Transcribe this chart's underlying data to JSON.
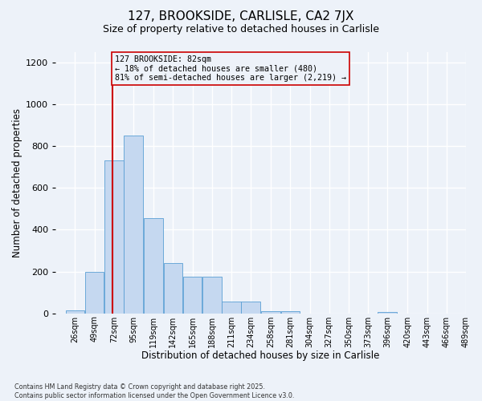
{
  "title_line1": "127, BROOKSIDE, CARLISLE, CA2 7JX",
  "title_line2": "Size of property relative to detached houses in Carlisle",
  "xlabel": "Distribution of detached houses by size in Carlisle",
  "ylabel": "Number of detached properties",
  "annotation_line1": "127 BROOKSIDE: 82sqm",
  "annotation_line2": "← 18% of detached houses are smaller (480)",
  "annotation_line3": "81% of semi-detached houses are larger (2,219) →",
  "property_size_sqm": 82,
  "bin_edges": [
    26,
    49,
    72,
    95,
    119,
    142,
    165,
    188,
    211,
    234,
    258,
    281,
    304,
    327,
    350,
    373,
    396,
    420,
    443,
    466,
    489
  ],
  "bin_labels": [
    "26sqm",
    "49sqm",
    "72sqm",
    "95sqm",
    "119sqm",
    "142sqm",
    "165sqm",
    "188sqm",
    "211sqm",
    "234sqm",
    "258sqm",
    "281sqm",
    "304sqm",
    "327sqm",
    "350sqm",
    "373sqm",
    "396sqm",
    "420sqm",
    "443sqm",
    "466sqm",
    "489sqm"
  ],
  "bar_heights": [
    15,
    200,
    730,
    850,
    455,
    240,
    175,
    175,
    55,
    55,
    10,
    10,
    0,
    0,
    0,
    0,
    5,
    0,
    0,
    0
  ],
  "bar_color": "#c5d8f0",
  "bar_edge_color": "#5a9fd4",
  "vline_color": "#cc0000",
  "vline_x": 82,
  "annotation_box_edge_color": "#cc0000",
  "ylim": [
    0,
    1250
  ],
  "yticks": [
    0,
    200,
    400,
    600,
    800,
    1000,
    1200
  ],
  "background_color": "#edf2f9",
  "grid_color": "#ffffff",
  "footer_line1": "Contains HM Land Registry data © Crown copyright and database right 2025.",
  "footer_line2": "Contains public sector information licensed under the Open Government Licence v3.0."
}
